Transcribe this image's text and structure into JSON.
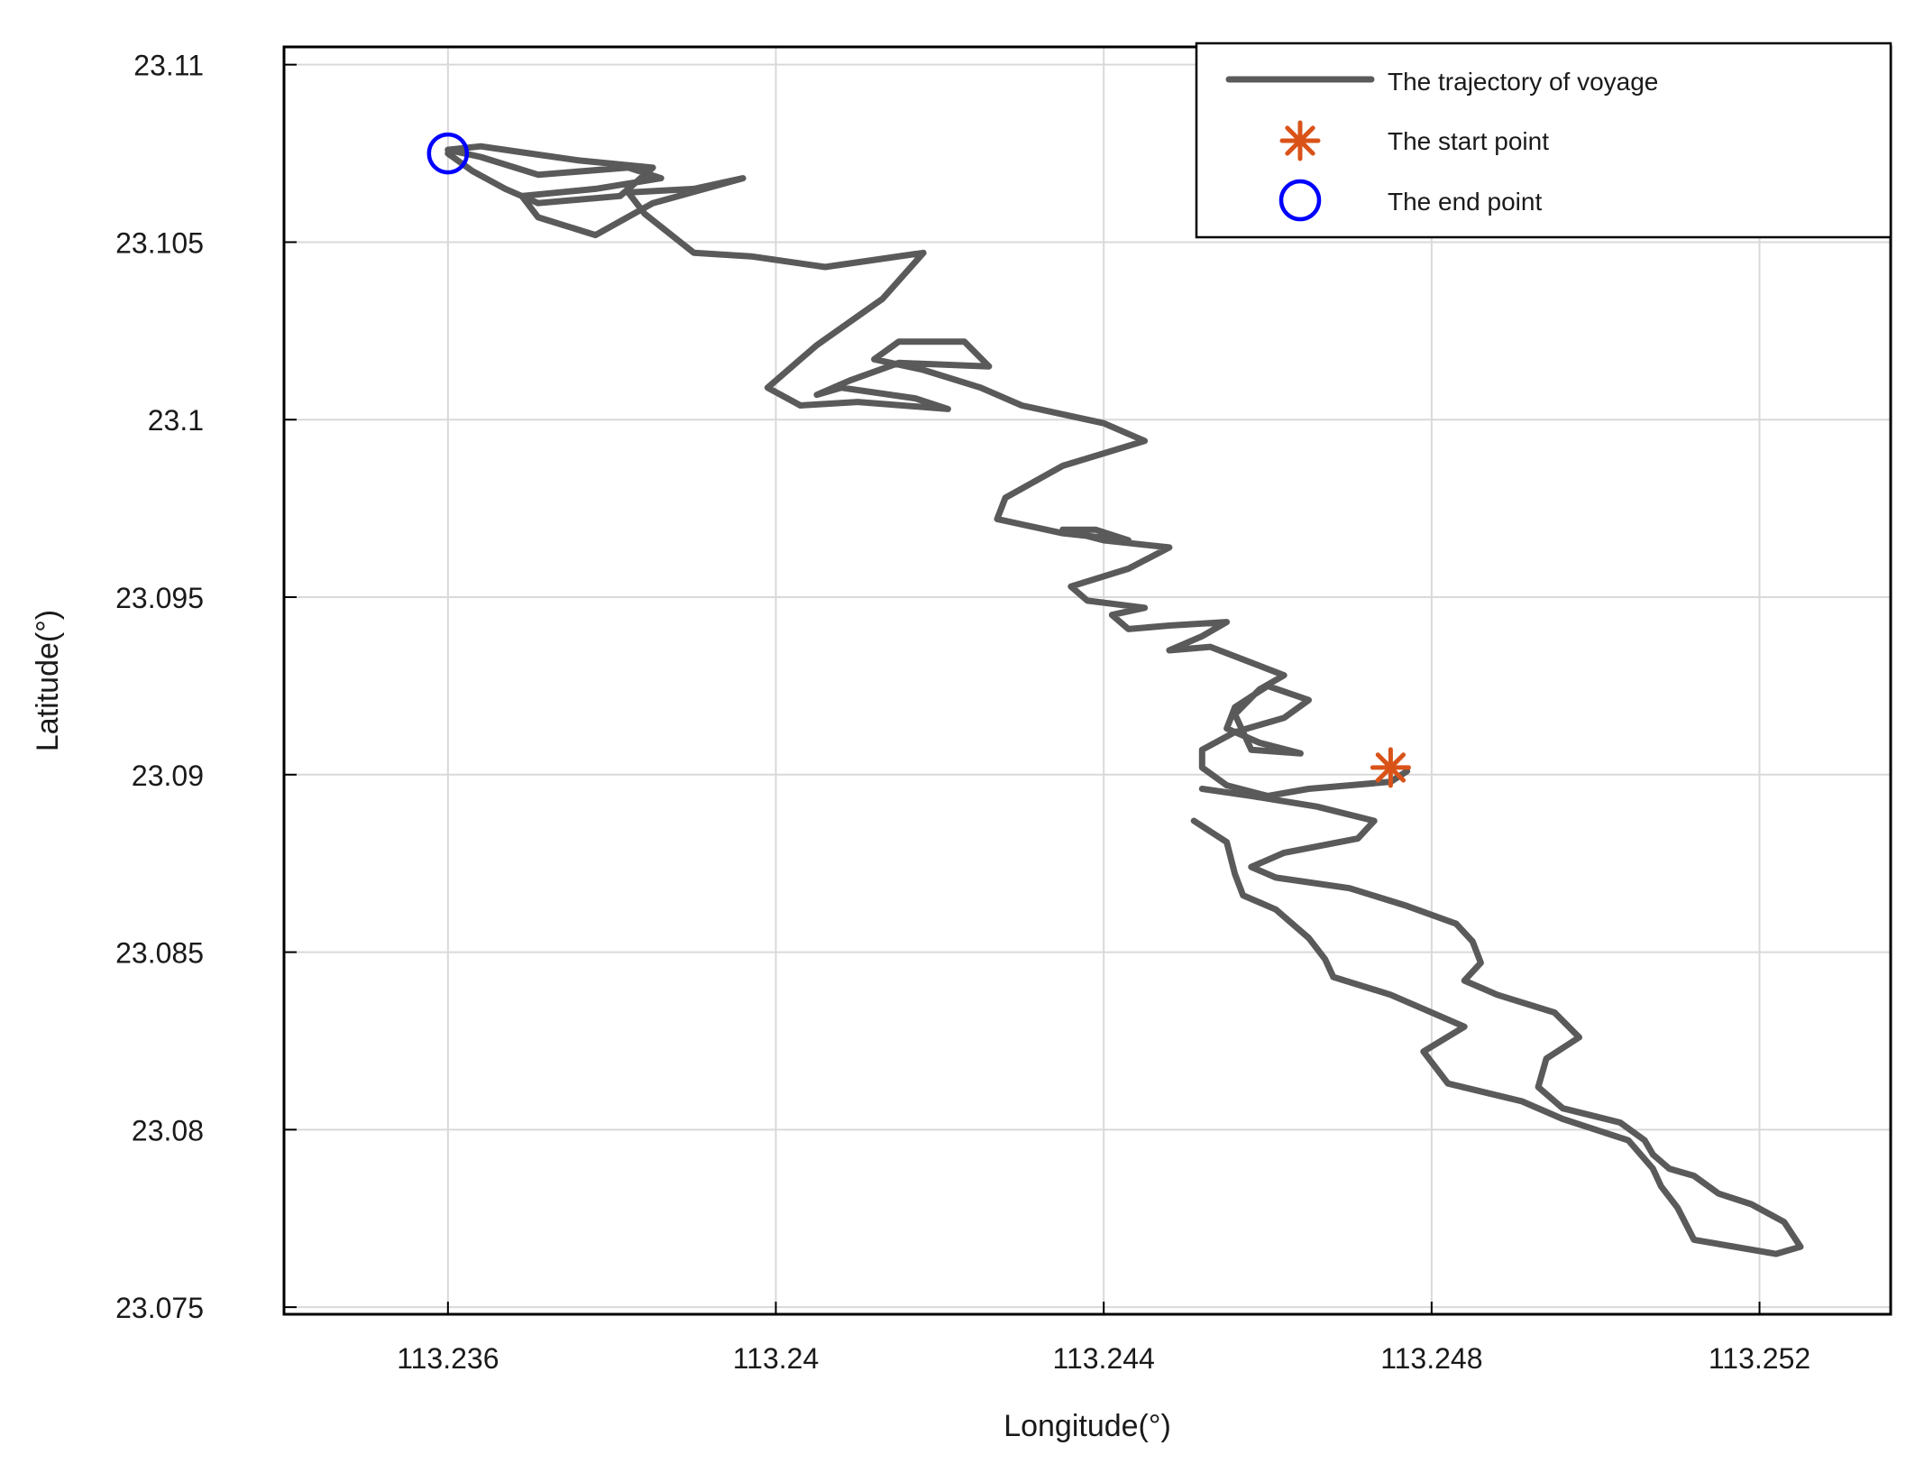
{
  "chart_data": {
    "type": "line",
    "xlabel": "Longitude(°)",
    "ylabel": "Latitude(°)",
    "xlim": [
      113.234,
      113.2536
    ],
    "ylim": [
      23.0748,
      23.1105
    ],
    "xticks": [
      113.236,
      113.24,
      113.244,
      113.248,
      113.252
    ],
    "xtick_labels": [
      "113.236",
      "113.24",
      "113.244",
      "113.248",
      "113.252"
    ],
    "yticks": [
      23.075,
      23.08,
      23.085,
      23.09,
      23.095,
      23.1,
      23.105,
      23.11
    ],
    "ytick_labels": [
      "23.075",
      "23.08",
      "23.085",
      "23.09",
      "23.095",
      "23.1",
      "23.105",
      "23.11"
    ],
    "grid": true,
    "legend_position": "top-right",
    "colors": {
      "trajectory": "#5a5a5a",
      "start": "#d95319",
      "end": "#0000ff",
      "grid": "#d9d9d9",
      "axes": "#000000"
    },
    "series": [
      {
        "name": "The trajectory of voyage",
        "marker": "line",
        "x": [
          113.2477,
          113.2475,
          113.247,
          113.2465,
          113.246,
          113.2455,
          113.2452,
          113.2452,
          113.2456,
          113.2462,
          113.2465,
          113.246,
          113.2456,
          113.2455,
          113.2459,
          113.2464,
          113.2458,
          113.2456,
          113.2459,
          113.2462,
          113.2453,
          113.2448,
          113.2452,
          113.2455,
          113.2448,
          113.2443,
          113.2441,
          113.2445,
          113.2438,
          113.2436,
          113.2443,
          113.2448,
          113.244,
          113.2435,
          113.2439,
          113.2443,
          113.2435,
          113.2427,
          113.2428,
          113.2435,
          113.2445,
          113.244,
          113.243,
          113.2425,
          113.2418,
          113.2412,
          113.2415,
          113.2423,
          113.2426,
          113.2415,
          113.2409,
          113.2405,
          113.2408,
          113.2417,
          113.2421,
          113.241,
          113.2403,
          113.2399,
          113.2405,
          113.2413,
          113.2418,
          113.2406,
          113.2397,
          113.239,
          113.2384,
          113.2382,
          113.239,
          113.2396,
          113.2385,
          113.2378,
          113.2371,
          113.2369,
          113.2378,
          113.2386,
          113.2382,
          113.2371,
          113.2364,
          113.236,
          113.2364,
          113.237,
          113.2376,
          113.2385,
          113.2381,
          113.2371,
          113.2367,
          113.2363,
          113.236
        ],
        "y": [
          23.0901,
          23.0898,
          23.0897,
          23.0896,
          23.0894,
          23.0897,
          23.0902,
          23.0907,
          23.0912,
          23.0916,
          23.0921,
          23.0925,
          23.0919,
          23.0913,
          23.0909,
          23.0906,
          23.0907,
          23.0917,
          23.0924,
          23.0928,
          23.0936,
          23.0935,
          23.0939,
          23.0943,
          23.0942,
          23.0941,
          23.0945,
          23.0947,
          23.0949,
          23.0953,
          23.0958,
          23.0964,
          23.0966,
          23.0969,
          23.0969,
          23.0966,
          23.0968,
          23.0972,
          23.0978,
          23.0987,
          23.0994,
          23.0999,
          23.1004,
          23.1009,
          23.1014,
          23.1017,
          23.1022,
          23.1022,
          23.1015,
          23.1016,
          23.1011,
          23.1007,
          23.1009,
          23.1006,
          23.1003,
          23.1005,
          23.1004,
          23.1009,
          23.1021,
          23.1034,
          23.1047,
          23.1043,
          23.1046,
          23.1047,
          23.1058,
          23.1064,
          23.1065,
          23.1068,
          23.1061,
          23.1052,
          23.1057,
          23.1063,
          23.1065,
          23.1068,
          23.1071,
          23.1069,
          23.1074,
          23.1076,
          23.1077,
          23.1075,
          23.1073,
          23.1071,
          23.1063,
          23.1061,
          23.1065,
          23.107,
          23.1075
        ]
      },
      {
        "name": "The trajectory of voyage",
        "marker": "line",
        "x": [
          113.2452,
          113.2458,
          113.2466,
          113.2473,
          113.2471,
          113.2462,
          113.2458,
          113.2461,
          113.247,
          113.2477,
          113.2483,
          113.2485,
          113.2486,
          113.2484,
          113.2488,
          113.2495,
          113.2498,
          113.2494,
          113.2493,
          113.2496,
          113.2503,
          113.2506,
          113.2507,
          113.2509,
          113.2512,
          113.2515,
          113.2519,
          113.2523,
          113.2525,
          113.2522,
          113.2512,
          113.251,
          113.2508,
          113.2507,
          113.2504,
          113.2496,
          113.2491,
          113.2482,
          113.2479,
          113.2484,
          113.2475,
          113.2468,
          113.2467,
          113.2465,
          113.2461,
          113.2457,
          113.2456,
          113.2455,
          113.2451
        ],
        "y": [
          23.0896,
          23.0894,
          23.0891,
          23.0887,
          23.0882,
          23.0878,
          23.0874,
          23.0871,
          23.0868,
          23.0863,
          23.0858,
          23.0853,
          23.0847,
          23.0842,
          23.0838,
          23.0833,
          23.0826,
          23.082,
          23.0812,
          23.0806,
          23.0802,
          23.0797,
          23.0793,
          23.0789,
          23.0787,
          23.0782,
          23.0779,
          23.0774,
          23.0767,
          23.0765,
          23.0769,
          23.0778,
          23.0784,
          23.0789,
          23.0797,
          23.0803,
          23.0808,
          23.0813,
          23.0822,
          23.0829,
          23.0838,
          23.0843,
          23.0848,
          23.0854,
          23.0862,
          23.0866,
          23.0872,
          23.0881,
          23.0887
        ]
      },
      {
        "name": "The start point",
        "marker": "asterisk",
        "x": [
          113.2475
        ],
        "y": [
          23.0902
        ]
      },
      {
        "name": "The end point",
        "marker": "circle",
        "x": [
          113.236
        ],
        "y": [
          23.1075
        ]
      }
    ]
  }
}
